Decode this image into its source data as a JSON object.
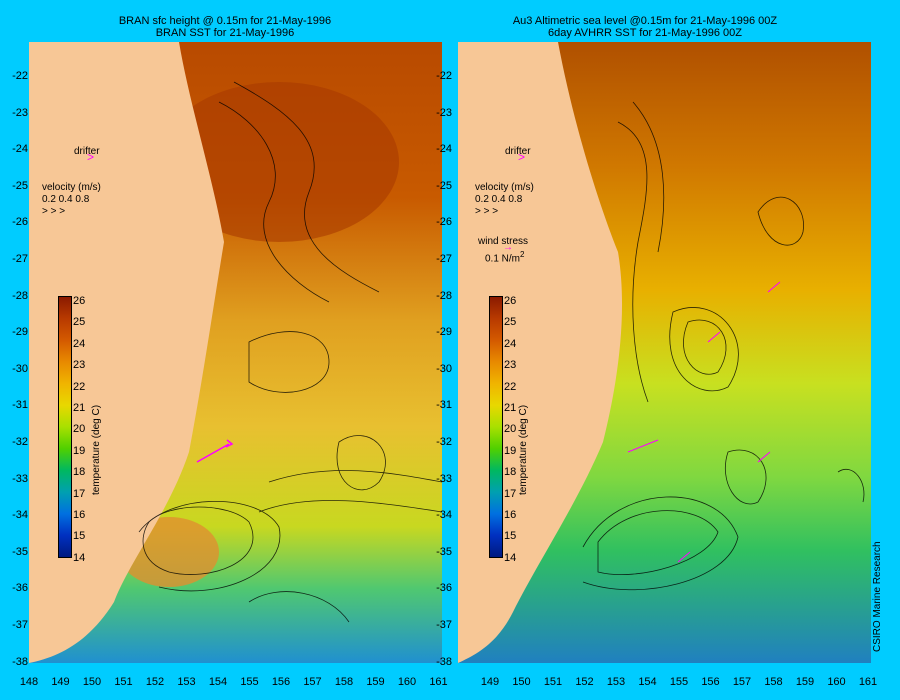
{
  "left_panel": {
    "title_line1": "BRAN sfc height @ 0.15m for 21-May-1996",
    "title_line2": "BRAN SST for 21-May-1996",
    "drifter_label": "drifter",
    "velocity_title": "velocity (m/s)",
    "velocity_scale": "0.2 0.4 0.8"
  },
  "right_panel": {
    "title_line1": "Au3 Altimetric sea level  @0.15m  for 21-May-1996 00Z",
    "title_line2": "6day AVHRR SST for 21-May-1996 00Z",
    "drifter_label": "drifter",
    "velocity_title": "velocity (m/s)",
    "velocity_scale": "0.2 0.4 0.8",
    "wind_title": "wind stress",
    "wind_scale": "0.1 N/m",
    "wind_exp": "2"
  },
  "y_axis_ticks": [
    "-22",
    "-23",
    "-24",
    "-25",
    "-26",
    "-27",
    "-28",
    "-29",
    "-30",
    "-31",
    "-32",
    "-33",
    "-34",
    "-35",
    "-36",
    "-37",
    "-38"
  ],
  "x_axis_ticks_left": [
    "148",
    "149",
    "150",
    "151",
    "152",
    "153",
    "154",
    "155",
    "156",
    "157",
    "158",
    "159",
    "160",
    "161"
  ],
  "x_axis_ticks_right": [
    "149",
    "150",
    "151",
    "152",
    "153",
    "154",
    "155",
    "156",
    "157",
    "158",
    "159",
    "160",
    "161"
  ],
  "colorbar": {
    "title": "temperature (deg C)",
    "ticks": [
      "26",
      "25",
      "24",
      "23",
      "22",
      "21",
      "20",
      "19",
      "18",
      "17",
      "16",
      "15",
      "14"
    ],
    "colors": [
      "#8b1a00",
      "#b83a00",
      "#d45a00",
      "#e88a00",
      "#f0b400",
      "#e8d800",
      "#a8e000",
      "#50d000",
      "#00b860",
      "#00a0b0",
      "#0070e0",
      "#0030c0",
      "#001a80"
    ]
  },
  "credit": "CSIRO Marine Research",
  "colors": {
    "background": "#00ccff",
    "land": "#f7c796",
    "arrow": "#ff00ff"
  }
}
